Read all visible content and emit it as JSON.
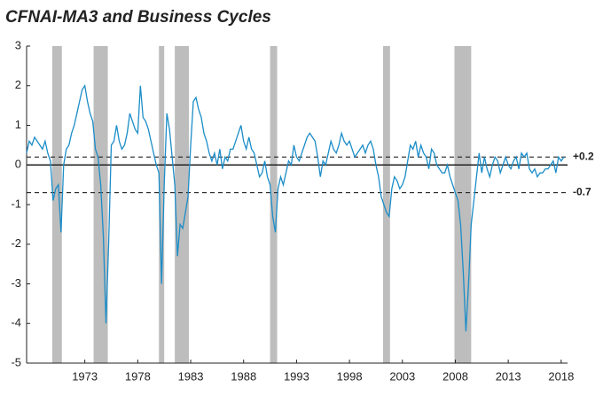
{
  "chart_data": {
    "type": "line",
    "title": "CFNAI-MA3 and Business Cycles",
    "x": [
      1967.5,
      1967.75,
      1968,
      1968.25,
      1968.5,
      1968.75,
      1969,
      1969.25,
      1969.5,
      1969.75,
      1970,
      1970.25,
      1970.5,
      1970.75,
      1971,
      1971.25,
      1971.5,
      1971.75,
      1972,
      1972.25,
      1972.5,
      1972.75,
      1973,
      1973.25,
      1973.5,
      1973.75,
      1974,
      1974.25,
      1974.5,
      1974.75,
      1975,
      1975.25,
      1975.5,
      1975.75,
      1976,
      1976.25,
      1976.5,
      1976.75,
      1977,
      1977.25,
      1977.5,
      1977.75,
      1978,
      1978.25,
      1978.5,
      1978.75,
      1979,
      1979.25,
      1979.5,
      1979.75,
      1980,
      1980.25,
      1980.5,
      1980.75,
      1981,
      1981.25,
      1981.5,
      1981.75,
      1982,
      1982.25,
      1982.5,
      1982.75,
      1983,
      1983.25,
      1983.5,
      1983.75,
      1984,
      1984.25,
      1984.5,
      1984.75,
      1985,
      1985.25,
      1985.5,
      1985.75,
      1986,
      1986.25,
      1986.5,
      1986.75,
      1987,
      1987.25,
      1987.5,
      1987.75,
      1988,
      1988.25,
      1988.5,
      1988.75,
      1989,
      1989.25,
      1989.5,
      1989.75,
      1990,
      1990.25,
      1990.5,
      1990.75,
      1991,
      1991.25,
      1991.5,
      1991.75,
      1992,
      1992.25,
      1992.5,
      1992.75,
      1993,
      1993.25,
      1993.5,
      1993.75,
      1994,
      1994.25,
      1994.5,
      1994.75,
      1995,
      1995.25,
      1995.5,
      1995.75,
      1996,
      1996.25,
      1996.5,
      1996.75,
      1997,
      1997.25,
      1997.5,
      1997.75,
      1998,
      1998.25,
      1998.5,
      1998.75,
      1999,
      1999.25,
      1999.5,
      1999.75,
      2000,
      2000.25,
      2000.5,
      2000.75,
      2001,
      2001.25,
      2001.5,
      2001.75,
      2002,
      2002.25,
      2002.5,
      2002.75,
      2003,
      2003.25,
      2003.5,
      2003.75,
      2004,
      2004.25,
      2004.5,
      2004.75,
      2005,
      2005.25,
      2005.5,
      2005.75,
      2006,
      2006.25,
      2006.5,
      2006.75,
      2007,
      2007.25,
      2007.5,
      2007.75,
      2008,
      2008.25,
      2008.5,
      2008.75,
      2009,
      2009.25,
      2009.5,
      2009.75,
      2010,
      2010.25,
      2010.5,
      2010.75,
      2011,
      2011.25,
      2011.5,
      2011.75,
      2012,
      2012.25,
      2012.5,
      2012.75,
      2013,
      2013.25,
      2013.5,
      2013.75,
      2014,
      2014.25,
      2014.5,
      2014.75,
      2015,
      2015.25,
      2015.5,
      2015.75,
      2016,
      2016.25,
      2016.5,
      2016.75,
      2017,
      2017.25,
      2017.5,
      2017.75,
      2018,
      2018.25
    ],
    "series": [
      {
        "color": "#1b8dc8",
        "values": [
          0.3,
          0.6,
          0.5,
          0.7,
          0.6,
          0.5,
          0.4,
          0.6,
          0.3,
          0.1,
          -0.9,
          -0.6,
          -0.5,
          -1.7,
          0.0,
          0.4,
          0.5,
          0.8,
          1.0,
          1.3,
          1.6,
          1.9,
          2.0,
          1.6,
          1.3,
          1.1,
          0.4,
          0.2,
          -0.5,
          -1.8,
          -4.0,
          -2.0,
          0.5,
          0.6,
          1.0,
          0.6,
          0.4,
          0.5,
          0.8,
          1.3,
          1.1,
          0.9,
          0.8,
          2.0,
          1.2,
          1.1,
          0.9,
          0.6,
          0.3,
          0.0,
          -0.2,
          -3.0,
          -0.5,
          1.3,
          0.9,
          0.2,
          -0.5,
          -2.3,
          -1.5,
          -1.6,
          -1.2,
          -0.8,
          0.5,
          1.6,
          1.7,
          1.4,
          1.2,
          0.8,
          0.6,
          0.3,
          0.1,
          0.3,
          0.0,
          0.4,
          -0.1,
          0.2,
          0.1,
          0.4,
          0.4,
          0.6,
          0.8,
          1.0,
          0.6,
          0.4,
          0.7,
          0.4,
          0.3,
          0.0,
          -0.3,
          -0.2,
          0.1,
          -0.3,
          -0.5,
          -1.3,
          -1.7,
          -0.6,
          -0.3,
          -0.5,
          -0.2,
          0.1,
          0.0,
          0.5,
          0.2,
          0.1,
          0.3,
          0.5,
          0.7,
          0.8,
          0.7,
          0.6,
          0.2,
          -0.3,
          0.1,
          0.0,
          0.3,
          0.6,
          0.4,
          0.3,
          0.5,
          0.8,
          0.6,
          0.5,
          0.6,
          0.4,
          0.2,
          0.3,
          0.4,
          0.5,
          0.3,
          0.5,
          0.6,
          0.4,
          0.0,
          -0.3,
          -0.8,
          -1.0,
          -1.2,
          -1.3,
          -0.6,
          -0.3,
          -0.4,
          -0.6,
          -0.5,
          -0.3,
          0.1,
          0.5,
          0.4,
          0.6,
          0.2,
          0.5,
          0.3,
          0.2,
          -0.1,
          0.4,
          0.3,
          0.0,
          -0.1,
          -0.2,
          -0.2,
          0.0,
          -0.3,
          -0.5,
          -0.7,
          -0.9,
          -1.5,
          -2.7,
          -4.2,
          -3.0,
          -1.5,
          -0.9,
          -0.3,
          0.3,
          -0.2,
          0.2,
          -0.1,
          -0.3,
          0.0,
          0.2,
          0.1,
          -0.2,
          0.0,
          0.2,
          0.0,
          -0.1,
          0.1,
          0.2,
          -0.1,
          0.3,
          0.2,
          0.3,
          -0.1,
          -0.2,
          -0.1,
          -0.3,
          -0.2,
          -0.2,
          -0.1,
          -0.1,
          0.0,
          0.1,
          -0.2,
          0.2,
          0.1,
          0.2
        ]
      }
    ],
    "recessions": [
      [
        1969.92,
        1970.83
      ],
      [
        1973.83,
        1975.17
      ],
      [
        1980.0,
        1980.5
      ],
      [
        1981.5,
        1982.83
      ],
      [
        1990.5,
        1991.17
      ],
      [
        2001.17,
        2001.83
      ],
      [
        2007.92,
        2009.5
      ]
    ],
    "recession_color": "#bdbdbd",
    "reference_lines": [
      {
        "value": 0.2,
        "label": "+0.2"
      },
      {
        "value": -0.7,
        "label": "-0.7"
      }
    ],
    "zero_line": true,
    "xlim": [
      1967.5,
      2018.6
    ],
    "xticks": [
      1973,
      1978,
      1983,
      1988,
      1993,
      1998,
      2003,
      2008,
      2013,
      2018
    ],
    "ylim": [
      -5,
      3
    ],
    "yticks": [
      -5,
      -4,
      -3,
      -2,
      -1,
      0,
      1,
      2,
      3
    ]
  }
}
